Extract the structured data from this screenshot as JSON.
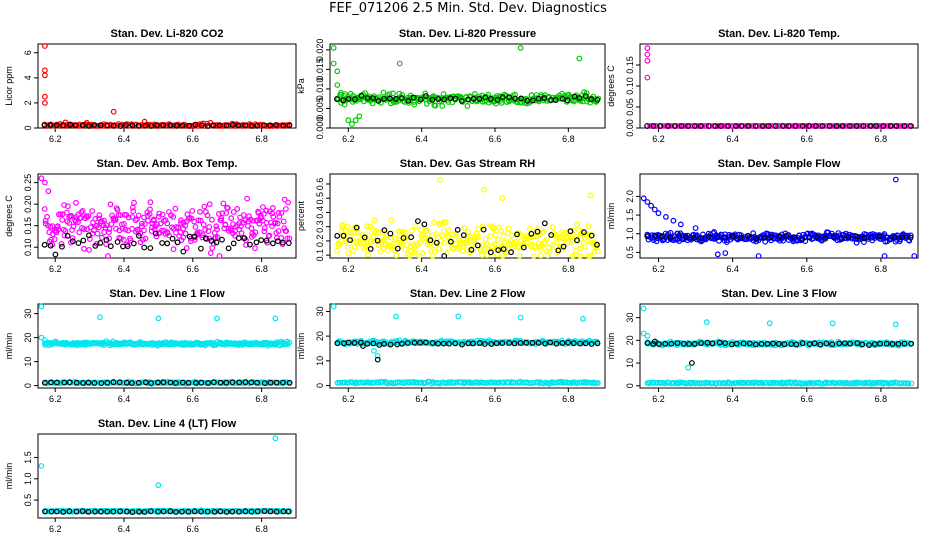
{
  "page": {
    "title": "FEF_071206  2.5 Min. Std. Dev. Diagnostics"
  },
  "palette": {
    "axis": "#000000",
    "overlay": "#000000"
  },
  "chart_data": [
    {
      "type": "scatter",
      "title": "Stan. Dev. Li-820 CO2",
      "xlabel": "",
      "ylabel": "Licor ppm",
      "xlim": [
        6.15,
        6.9
      ],
      "ylim": [
        0,
        6.7
      ],
      "xticks": [
        6.2,
        6.4,
        6.6,
        6.8
      ],
      "xtick_labels": [
        "6.2",
        "6.4",
        "6.6",
        "6.8"
      ],
      "yticks": [
        0,
        2,
        4,
        6
      ],
      "ytick_labels": [
        "0",
        "2",
        "4",
        "6"
      ],
      "series": [
        {
          "name": "main",
          "color": "#ff0000",
          "base": 0.22,
          "noise": 0.12,
          "n": 140,
          "spikes": [
            [
              6.17,
              6.6
            ],
            [
              6.17,
              4.6
            ],
            [
              6.17,
              4.2
            ],
            [
              6.17,
              2.5
            ],
            [
              6.17,
              2.0
            ],
            [
              6.37,
              1.3
            ],
            [
              6.23,
              0.45
            ],
            [
              6.46,
              0.5
            ]
          ]
        },
        {
          "name": "overlay",
          "color": "#000000",
          "base": 0.2,
          "noise": 0.05,
          "n": 40,
          "spikes": []
        }
      ]
    },
    {
      "type": "scatter",
      "title": "Stan. Dev. Li-820 Pressure",
      "xlabel": "",
      "ylabel": "kPa",
      "xlim": [
        6.15,
        6.9
      ],
      "ylim": [
        0,
        0.0215
      ],
      "xticks": [
        6.2,
        6.4,
        6.6,
        6.8
      ],
      "xtick_labels": [
        "6.2",
        "6.4",
        "6.6",
        "6.8"
      ],
      "yticks": [
        0,
        0.005,
        0.01,
        0.015,
        0.02
      ],
      "ytick_labels": [
        "0.000",
        "0.005",
        "0.010",
        "0.015",
        "0.020"
      ],
      "series": [
        {
          "name": "main",
          "color": "#00cc00",
          "base": 0.0075,
          "noise": 0.0012,
          "n": 260,
          "spikes": [
            [
              6.16,
              0.0205
            ],
            [
              6.16,
              0.0165
            ],
            [
              6.17,
              0.0145
            ],
            [
              6.17,
              0.011
            ],
            [
              6.18,
              0.009
            ],
            [
              6.19,
              0.006
            ],
            [
              6.2,
              0.002
            ],
            [
              6.21,
              0.001
            ],
            [
              6.22,
              0.002
            ],
            [
              6.23,
              0.003
            ],
            [
              6.34,
              0.0165
            ],
            [
              6.67,
              0.0205
            ],
            [
              6.83,
              0.0178
            ]
          ]
        },
        {
          "name": "overlay",
          "color": "#000000",
          "base": 0.0075,
          "noise": 0.0006,
          "n": 45,
          "spikes": []
        }
      ]
    },
    {
      "type": "scatter",
      "title": "Stan. Dev. Li-820 Temp.",
      "xlabel": "",
      "ylabel": "degrees C",
      "xlim": [
        6.15,
        6.9
      ],
      "ylim": [
        0,
        0.2
      ],
      "xticks": [
        6.2,
        6.4,
        6.6,
        6.8
      ],
      "xtick_labels": [
        "6.2",
        "6.4",
        "6.6",
        "6.8"
      ],
      "yticks": [
        0,
        0.05,
        0.1,
        0.15
      ],
      "ytick_labels": [
        "0.00",
        "0.05",
        "0.10",
        "0.15"
      ],
      "series": [
        {
          "name": "main",
          "color": "#ff00cc",
          "base": 0.0,
          "noise": 0.0006,
          "n": 130,
          "spikes": [
            [
              6.17,
              0.19
            ],
            [
              6.17,
              0.175
            ],
            [
              6.17,
              0.16
            ],
            [
              6.17,
              0.12
            ]
          ]
        },
        {
          "name": "overlay",
          "color": "#000000",
          "base": 0.0,
          "noise": 0.0004,
          "n": 40,
          "spikes": []
        }
      ]
    },
    {
      "type": "scatter",
      "title": "Stan. Dev. Amb. Box Temp.",
      "xlabel": "",
      "ylabel": "degrees C",
      "xlim": [
        6.15,
        6.9
      ],
      "ylim": [
        0.075,
        0.27
      ],
      "xticks": [
        6.2,
        6.4,
        6.6,
        6.8
      ],
      "xtick_labels": [
        "6.2",
        "6.4",
        "6.6",
        "6.8"
      ],
      "yticks": [
        0.1,
        0.15,
        0.2,
        0.25
      ],
      "ytick_labels": [
        "0.10",
        "0.15",
        "0.20",
        "0.25"
      ],
      "series": [
        {
          "name": "main",
          "color": "#ff00ff",
          "base": 0.15,
          "noise": 0.045,
          "n": 320,
          "spikes": [
            [
              6.16,
              0.26
            ],
            [
              6.17,
              0.25
            ],
            [
              6.18,
              0.23
            ]
          ]
        },
        {
          "name": "overlay",
          "color": "#000000",
          "base": 0.11,
          "noise": 0.015,
          "n": 45,
          "spikes": []
        }
      ]
    },
    {
      "type": "scatter",
      "title": "Stan. Dev. Gas Stream RH",
      "xlabel": "",
      "ylabel": "percent",
      "xlim": [
        6.15,
        6.9
      ],
      "ylim": [
        0.08,
        0.67
      ],
      "xticks": [
        6.2,
        6.4,
        6.6,
        6.8
      ],
      "xtick_labels": [
        "6.2",
        "6.4",
        "6.6",
        "6.8"
      ],
      "yticks": [
        0.1,
        0.2,
        0.3,
        0.4,
        0.5,
        0.6
      ],
      "ytick_labels": [
        "0.1",
        "0.2",
        "0.3",
        "0.4",
        "0.5",
        "0.6"
      ],
      "series": [
        {
          "name": "main",
          "color": "#ffff00",
          "base": 0.2,
          "noise": 0.1,
          "n": 320,
          "spikes": [
            [
              6.45,
              0.63
            ],
            [
              6.57,
              0.56
            ],
            [
              6.62,
              0.5
            ],
            [
              6.86,
              0.52
            ]
          ]
        },
        {
          "name": "overlay",
          "color": "#000000",
          "base": 0.22,
          "noise": 0.1,
          "n": 40,
          "spikes": []
        }
      ]
    },
    {
      "type": "scatter",
      "title": "Stan. Dev. Sample Flow",
      "xlabel": "",
      "ylabel": "ml/min",
      "xlim": [
        6.15,
        6.9
      ],
      "ylim": [
        0.35,
        2.6
      ],
      "xticks": [
        6.2,
        6.4,
        6.6,
        6.8
      ],
      "xtick_labels": [
        "6.2",
        "6.4",
        "6.6",
        "6.8"
      ],
      "yticks": [
        0.5,
        1.0,
        1.5,
        2.0
      ],
      "ytick_labels": [
        "0.5",
        "1.0",
        "1.5",
        "2.0"
      ],
      "series": [
        {
          "name": "main",
          "color": "#0000ff",
          "base": 0.9,
          "noise": 0.1,
          "n": 300,
          "spikes": [
            [
              6.16,
              1.95
            ],
            [
              6.17,
              1.85
            ],
            [
              6.18,
              1.75
            ],
            [
              6.19,
              1.65
            ],
            [
              6.2,
              1.55
            ],
            [
              6.22,
              1.45
            ],
            [
              6.24,
              1.35
            ],
            [
              6.26,
              1.25
            ],
            [
              6.3,
              1.15
            ],
            [
              6.35,
              1.05
            ],
            [
              6.36,
              0.45
            ],
            [
              6.38,
              0.48
            ],
            [
              6.47,
              0.4
            ],
            [
              6.84,
              2.45
            ],
            [
              6.81,
              0.4
            ],
            [
              6.89,
              0.4
            ]
          ]
        },
        {
          "name": "overlay",
          "color": "#000000",
          "base": 0.9,
          "noise": 0.05,
          "n": 35,
          "spikes": []
        }
      ]
    },
    {
      "type": "scatter",
      "title": "Stan. Dev. Line 1 Flow",
      "xlabel": "",
      "ylabel": "ml/min",
      "xlim": [
        6.15,
        6.9
      ],
      "ylim": [
        -1,
        34
      ],
      "xticks": [
        6.2,
        6.4,
        6.6,
        6.8
      ],
      "xtick_labels": [
        "6.2",
        "6.4",
        "6.6",
        "6.8"
      ],
      "yticks": [
        0,
        10,
        20,
        30
      ],
      "ytick_labels": [
        "0",
        "10",
        "20",
        "30"
      ],
      "series": [
        {
          "name": "main",
          "color": "#00e5ee",
          "base": 17.5,
          "noise": 0.6,
          "n": 260,
          "spikes": [
            [
              6.16,
              33
            ],
            [
              6.33,
              28.5
            ],
            [
              6.5,
              28
            ],
            [
              6.67,
              28
            ],
            [
              6.84,
              28
            ],
            [
              6.16,
              20
            ],
            [
              6.17,
              19
            ]
          ]
        },
        {
          "name": "low",
          "color": "#00e5ee",
          "base": 1.2,
          "noise": 0.3,
          "n": 160,
          "spikes": []
        },
        {
          "name": "overlay",
          "color": "#000000",
          "base": 1.2,
          "noise": 0.2,
          "n": 40,
          "spikes": []
        }
      ]
    },
    {
      "type": "scatter",
      "title": "Stan. Dev. Line 2 Flow",
      "xlabel": "",
      "ylabel": "ml/min",
      "xlim": [
        6.15,
        6.9
      ],
      "ylim": [
        -1,
        33
      ],
      "xticks": [
        6.2,
        6.4,
        6.6,
        6.8
      ],
      "xtick_labels": [
        "6.2",
        "6.4",
        "6.6",
        "6.8"
      ],
      "yticks": [
        0,
        10,
        20,
        30
      ],
      "ytick_labels": [
        "0",
        "10",
        "20",
        "30"
      ],
      "series": [
        {
          "name": "main",
          "color": "#00e5ee",
          "base": 17.5,
          "noise": 0.6,
          "n": 240,
          "spikes": [
            [
              6.16,
              32
            ],
            [
              6.33,
              28
            ],
            [
              6.5,
              28
            ],
            [
              6.67,
              27.5
            ],
            [
              6.84,
              27
            ],
            [
              6.27,
              14
            ],
            [
              6.28,
              12
            ]
          ]
        },
        {
          "name": "low",
          "color": "#00e5ee",
          "base": 1.2,
          "noise": 0.3,
          "n": 160,
          "spikes": []
        },
        {
          "name": "overlay",
          "color": "#000000",
          "base": 17,
          "noise": 0.4,
          "n": 45,
          "spikes": [
            [
              6.28,
              10.5
            ],
            [
              6.24,
              16
            ]
          ]
        }
      ]
    },
    {
      "type": "scatter",
      "title": "Stan. Dev. Line 3 Flow",
      "xlabel": "",
      "ylabel": "ml/min",
      "xlim": [
        6.15,
        6.9
      ],
      "ylim": [
        -1,
        36
      ],
      "xticks": [
        6.2,
        6.4,
        6.6,
        6.8
      ],
      "xtick_labels": [
        "6.2",
        "6.4",
        "6.6",
        "6.8"
      ],
      "yticks": [
        0,
        10,
        20,
        30
      ],
      "ytick_labels": [
        "0",
        "10",
        "20",
        "30"
      ],
      "series": [
        {
          "name": "main",
          "color": "#00e5ee",
          "base": 18.5,
          "noise": 0.6,
          "n": 240,
          "spikes": [
            [
              6.16,
              34
            ],
            [
              6.16,
              23
            ],
            [
              6.17,
              22
            ],
            [
              6.33,
              28
            ],
            [
              6.5,
              27.5
            ],
            [
              6.67,
              27.5
            ],
            [
              6.84,
              27
            ],
            [
              6.28,
              8
            ]
          ]
        },
        {
          "name": "low",
          "color": "#00e5ee",
          "base": 1.2,
          "noise": 0.3,
          "n": 160,
          "spikes": []
        },
        {
          "name": "overlay",
          "color": "#000000",
          "base": 18.5,
          "noise": 0.4,
          "n": 45,
          "spikes": [
            [
              6.29,
              10
            ],
            [
              6.19,
              19.5
            ]
          ]
        }
      ]
    },
    {
      "type": "scatter",
      "title": "Stan. Dev. Line 4 (LT) Flow",
      "xlabel": "",
      "ylabel": "ml/min",
      "xlim": [
        6.15,
        6.9
      ],
      "ylim": [
        0.08,
        2.05
      ],
      "xticks": [
        6.2,
        6.4,
        6.6,
        6.8
      ],
      "xtick_labels": [
        "6.2",
        "6.4",
        "6.6",
        "6.8"
      ],
      "yticks": [
        0.5,
        1.0,
        1.5
      ],
      "ytick_labels": [
        "0.5",
        "1.0",
        "1.5"
      ],
      "series": [
        {
          "name": "main",
          "color": "#00e5ee",
          "base": 0.24,
          "noise": 0.012,
          "n": 200,
          "spikes": [
            [
              6.16,
              1.3
            ],
            [
              6.5,
              0.85
            ],
            [
              6.84,
              1.95
            ]
          ]
        },
        {
          "name": "overlay",
          "color": "#000000",
          "base": 0.23,
          "noise": 0.01,
          "n": 40,
          "spikes": []
        }
      ]
    }
  ]
}
